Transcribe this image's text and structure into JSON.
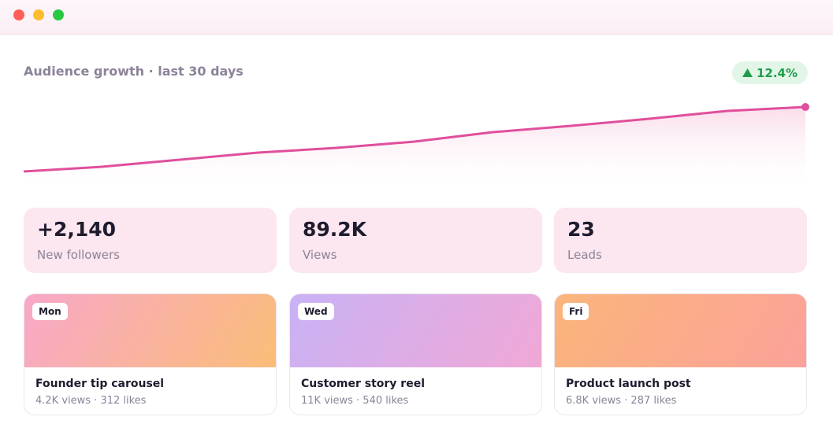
{
  "header": {
    "title": "Audience growth · last 30 days"
  },
  "badge": {
    "text": "12.4%"
  },
  "chart_data": {
    "type": "line",
    "color": "#e04f9c",
    "values": [
      0,
      6,
      15,
      24,
      30,
      38,
      50,
      58,
      67,
      77,
      82
    ]
  },
  "stats": [
    {
      "value": "+2,140",
      "label": "New followers"
    },
    {
      "value": "89.2K",
      "label": "Views"
    },
    {
      "value": "23",
      "label": "Leads"
    }
  ],
  "posts": [
    {
      "day": "Mon",
      "title": "Founder tip carousel",
      "meta": "4.2K views · 312 likes"
    },
    {
      "day": "Wed",
      "title": "Customer story reel",
      "meta": "11K views · 540 likes"
    },
    {
      "day": "Fri",
      "title": "Product launch post",
      "meta": "6.8K views · 287 likes"
    }
  ]
}
